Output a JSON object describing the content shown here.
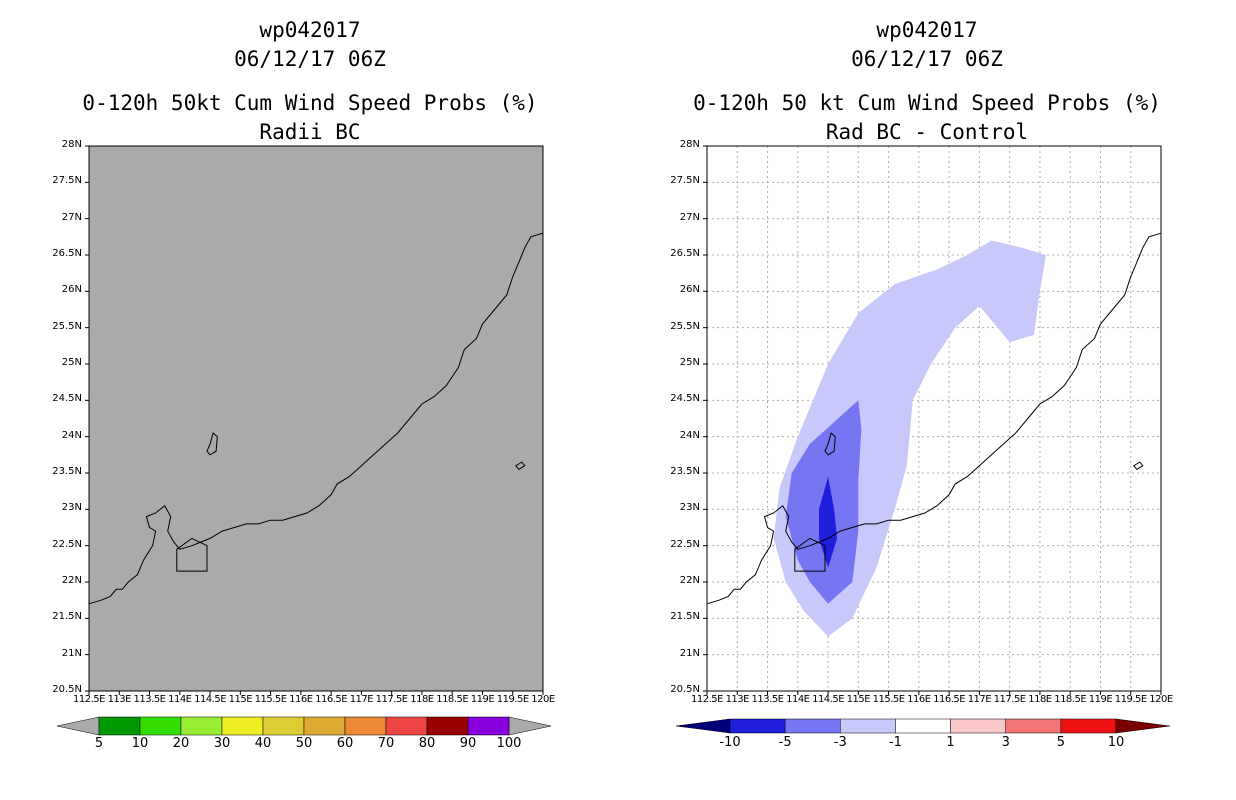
{
  "panels": [
    {
      "storm_id": "wp042017",
      "datetime": "06/12/17 06Z",
      "title_line1": "0-120h 50kt Cum Wind Speed Probs (%)",
      "title_line2": "Radii BC"
    },
    {
      "storm_id": "wp042017",
      "datetime": "06/12/17 06Z",
      "title_line1": "0-120h 50 kt Cum Wind Speed Probs (%)",
      "title_line2": "Rad BC - Control"
    }
  ],
  "chart_data": [
    {
      "type": "map",
      "title": "0-120h 50kt Cum Wind Speed Probs (%) Radii BC",
      "xlim": [
        112.5,
        120.0
      ],
      "ylim": [
        20.5,
        28.0
      ],
      "xtick_labels": [
        "112.5E",
        "113E",
        "113.5E",
        "114E",
        "114.5E",
        "115E",
        "115.5E",
        "116E",
        "116.5E",
        "117E",
        "117.5E",
        "118E",
        "118.5E",
        "119E",
        "119.5E",
        "120E"
      ],
      "ytick_labels": [
        "20.5N",
        "21N",
        "21.5N",
        "22N",
        "22.5N",
        "23N",
        "23.5N",
        "24N",
        "24.5N",
        "25N",
        "25.5N",
        "26N",
        "26.5N",
        "27N",
        "27.5N",
        "28N"
      ],
      "background_color": "#aaaaaa",
      "colorbar": {
        "labels": [
          "5",
          "10",
          "20",
          "30",
          "40",
          "50",
          "60",
          "70",
          "80",
          "90",
          "100"
        ],
        "colors": [
          "#009900",
          "#33dd00",
          "#99ee33",
          "#eeee22",
          "#ddcc33",
          "#ddaa33",
          "#ee8833",
          "#ee4444",
          "#990000",
          "#8800dd"
        ]
      }
    },
    {
      "type": "map",
      "title": "0-120h 50 kt Cum Wind Speed Probs (%) Rad BC - Control",
      "xlim": [
        112.5,
        120.0
      ],
      "ylim": [
        20.5,
        28.0
      ],
      "xtick_labels": [
        "112.5E",
        "113E",
        "113.5E",
        "114E",
        "114.5E",
        "115E",
        "115.5E",
        "116E",
        "116.5E",
        "117E",
        "117.5E",
        "118E",
        "118.5E",
        "119E",
        "119.5E",
        "120E"
      ],
      "ytick_labels": [
        "20.5N",
        "21N",
        "21.5N",
        "22N",
        "22.5N",
        "23N",
        "23.5N",
        "24N",
        "24.5N",
        "25N",
        "25.5N",
        "26N",
        "26.5N",
        "27N",
        "27.5N",
        "28N"
      ],
      "grid": true,
      "contours": [
        {
          "level": "-3 to -1",
          "color": "#c8c8fa",
          "points": [
            [
              114.5,
              21.25
            ],
            [
              114.9,
              21.5
            ],
            [
              115.3,
              22.2
            ],
            [
              115.6,
              23.0
            ],
            [
              115.8,
              23.6
            ],
            [
              115.9,
              24.5
            ],
            [
              116.2,
              25.0
            ],
            [
              116.6,
              25.5
            ],
            [
              117.0,
              25.8
            ],
            [
              117.5,
              25.3
            ],
            [
              117.9,
              25.4
            ],
            [
              118.0,
              26.0
            ],
            [
              118.1,
              26.5
            ],
            [
              117.7,
              26.6
            ],
            [
              117.2,
              26.7
            ],
            [
              116.8,
              26.5
            ],
            [
              116.3,
              26.3
            ],
            [
              115.6,
              26.1
            ],
            [
              115.0,
              25.7
            ],
            [
              114.5,
              25.0
            ],
            [
              114.0,
              24.0
            ],
            [
              113.7,
              23.3
            ],
            [
              113.6,
              22.6
            ],
            [
              113.8,
              22.0
            ],
            [
              114.1,
              21.6
            ]
          ]
        },
        {
          "level": "-5 to -3",
          "color": "#7676f2",
          "points": [
            [
              114.5,
              21.7
            ],
            [
              114.9,
              22.0
            ],
            [
              115.0,
              22.7
            ],
            [
              115.0,
              23.4
            ],
            [
              115.05,
              24.1
            ],
            [
              115.0,
              24.5
            ],
            [
              114.6,
              24.2
            ],
            [
              114.2,
              23.9
            ],
            [
              113.9,
              23.5
            ],
            [
              113.8,
              22.9
            ],
            [
              114.0,
              22.3
            ],
            [
              114.2,
              22.0
            ]
          ]
        },
        {
          "level": "-10 to -5",
          "color": "#1e1edc",
          "points": [
            [
              114.5,
              22.2
            ],
            [
              114.65,
              22.6
            ],
            [
              114.6,
              23.0
            ],
            [
              114.5,
              23.45
            ],
            [
              114.35,
              23.0
            ],
            [
              114.35,
              22.6
            ]
          ]
        }
      ],
      "colorbar": {
        "labels": [
          "-10",
          "-5",
          "-3",
          "-1",
          "1",
          "3",
          "5",
          "10"
        ],
        "colors": [
          "#00007a",
          "#1e1edc",
          "#7676f2",
          "#c8c8fa",
          "#ffffff",
          "#fac8c8",
          "#f27676",
          "#ee1111",
          "#7a0000"
        ]
      }
    }
  ]
}
